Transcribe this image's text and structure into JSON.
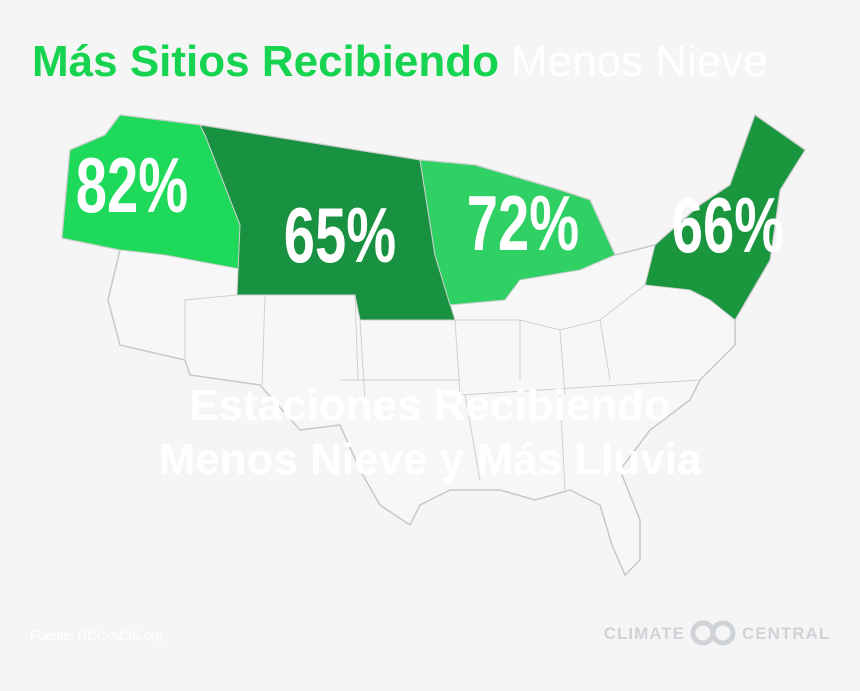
{
  "title": {
    "highlight": "Más Sitios Recibiendo",
    "rest": "Menos Nieve"
  },
  "regions": [
    {
      "label": "82%",
      "color": "#1ed95a"
    },
    {
      "label": "65%",
      "color": "#189140"
    },
    {
      "label": "72%",
      "color": "#2fd164"
    },
    {
      "label": "66%",
      "color": "#1a963f"
    }
  ],
  "subtitle": [
    "Estaciones Recibiendo",
    "Menos Nieve y Más Lluvia"
  ],
  "source": "Fuente: RCC-ACIS.org",
  "logo": {
    "left": "CLIMATE",
    "right": "CENTRAL"
  }
}
